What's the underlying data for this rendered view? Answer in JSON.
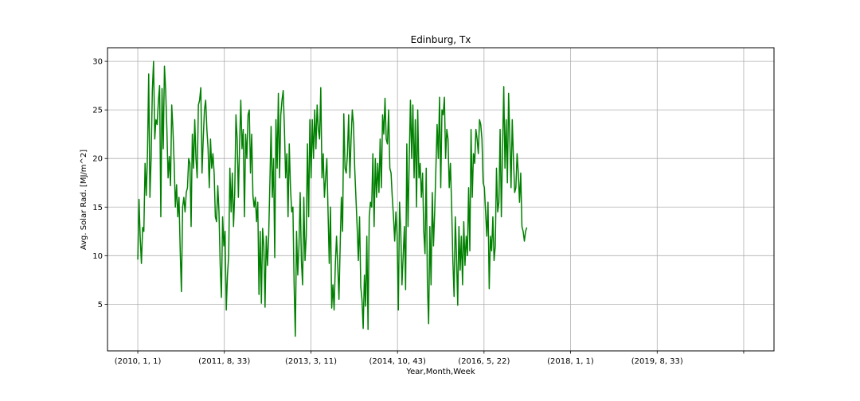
{
  "chart_data": {
    "type": "line",
    "title": "Edinburg, Tx",
    "xlabel": "Year,Month,Week",
    "ylabel": "Avg. Solar Rad. [MJ/m^2]",
    "grid": true,
    "line_color": "#008000",
    "ylim": [
      0.2,
      31.4
    ],
    "xlim": [
      -25,
      525
    ],
    "yticks": [
      5,
      10,
      15,
      20,
      25,
      30
    ],
    "xticks": [
      {
        "pos": 0,
        "label": "(2010, 1, 1)"
      },
      {
        "pos": 71.4,
        "label": "(2011, 8, 33)"
      },
      {
        "pos": 142.9,
        "label": "(2013, 3, 11)"
      },
      {
        "pos": 214.3,
        "label": "(2014, 10, 43)"
      },
      {
        "pos": 285.7,
        "label": "(2016, 5, 22)"
      },
      {
        "pos": 357.1,
        "label": "(2018, 1, 1)"
      },
      {
        "pos": 428.6,
        "label": "(2019, 8, 33)"
      },
      {
        "pos": 500,
        "label": ""
      }
    ],
    "series": [
      {
        "name": "Avg. Solar Rad.",
        "points": [
          [
            0,
            9.6
          ],
          [
            1,
            15.8
          ],
          [
            2,
            11.8
          ],
          [
            3,
            9.2
          ],
          [
            4,
            12.9
          ],
          [
            5,
            12.5
          ],
          [
            6,
            19.5
          ],
          [
            7,
            16.2
          ],
          [
            8,
            20.5
          ],
          [
            9,
            28.7
          ],
          [
            10,
            16.0
          ],
          [
            11,
            20.1
          ],
          [
            12,
            27.0
          ],
          [
            13,
            30.0
          ],
          [
            14,
            22.0
          ],
          [
            15,
            24.0
          ],
          [
            16,
            23.5
          ],
          [
            17,
            26.0
          ],
          [
            18,
            27.5
          ],
          [
            19,
            14.0
          ],
          [
            20,
            27.2
          ],
          [
            21,
            21.0
          ],
          [
            22,
            29.5
          ],
          [
            23,
            27.0
          ],
          [
            24,
            23.0
          ],
          [
            25,
            18.0
          ],
          [
            26,
            20.2
          ],
          [
            27,
            17.2
          ],
          [
            28,
            25.5
          ],
          [
            29,
            23.0
          ],
          [
            30,
            19.5
          ],
          [
            31,
            15.0
          ],
          [
            32,
            17.3
          ],
          [
            33,
            14.0
          ],
          [
            34,
            16.0
          ],
          [
            35,
            10.5
          ],
          [
            36,
            6.3
          ],
          [
            37,
            15.0
          ],
          [
            38,
            16.0
          ],
          [
            39,
            14.5
          ],
          [
            40,
            16.5
          ],
          [
            41,
            17.0
          ],
          [
            42,
            20.0
          ],
          [
            43,
            19.5
          ],
          [
            44,
            13.0
          ],
          [
            45,
            22.5
          ],
          [
            46,
            19.0
          ],
          [
            47,
            24.0
          ],
          [
            48,
            20.0
          ],
          [
            49,
            18.0
          ],
          [
            50,
            25.5
          ],
          [
            51,
            26.0
          ],
          [
            52,
            27.3
          ],
          [
            53,
            18.5
          ],
          [
            54,
            22.0
          ],
          [
            55,
            25.0
          ],
          [
            56,
            26.0
          ],
          [
            57,
            23.0
          ],
          [
            58,
            21.0
          ],
          [
            59,
            17.0
          ],
          [
            60,
            22.0
          ],
          [
            61,
            19.0
          ],
          [
            62,
            20.5
          ],
          [
            63,
            18.5
          ],
          [
            64,
            14.0
          ],
          [
            65,
            13.5
          ],
          [
            66,
            17.2
          ],
          [
            67,
            14.5
          ],
          [
            68,
            9.0
          ],
          [
            69,
            5.7
          ],
          [
            70,
            14.0
          ],
          [
            71,
            11.0
          ],
          [
            72,
            12.5
          ],
          [
            73,
            4.4
          ],
          [
            74,
            8.0
          ],
          [
            75,
            10.0
          ],
          [
            76,
            19.0
          ],
          [
            77,
            14.5
          ],
          [
            78,
            18.5
          ],
          [
            79,
            13.0
          ],
          [
            80,
            16.5
          ],
          [
            81,
            24.5
          ],
          [
            82,
            22.0
          ],
          [
            83,
            16.0
          ],
          [
            84,
            21.5
          ],
          [
            85,
            26.0
          ],
          [
            86,
            21.0
          ],
          [
            87,
            23.0
          ],
          [
            88,
            14.0
          ],
          [
            89,
            22.5
          ],
          [
            90,
            20.0
          ],
          [
            91,
            24.5
          ],
          [
            92,
            25.0
          ],
          [
            93,
            18.5
          ],
          [
            94,
            22.5
          ],
          [
            95,
            16.2
          ],
          [
            96,
            15.0
          ],
          [
            97,
            16.0
          ],
          [
            98,
            13.5
          ],
          [
            99,
            15.5
          ],
          [
            100,
            6.0
          ],
          [
            101,
            12.5
          ],
          [
            102,
            5.1
          ],
          [
            103,
            12.8
          ],
          [
            104,
            11.0
          ],
          [
            105,
            4.7
          ],
          [
            106,
            12.0
          ],
          [
            107,
            9.0
          ],
          [
            108,
            12.0
          ],
          [
            109,
            17.5
          ],
          [
            110,
            23.3
          ],
          [
            111,
            16.0
          ],
          [
            112,
            20.0
          ],
          [
            113,
            9.8
          ],
          [
            114,
            24.0
          ],
          [
            115,
            19.0
          ],
          [
            116,
            26.7
          ],
          [
            117,
            18.0
          ],
          [
            118,
            24.5
          ],
          [
            119,
            26.0
          ],
          [
            120,
            27.0
          ],
          [
            121,
            23.0
          ],
          [
            122,
            18.0
          ],
          [
            123,
            20.5
          ],
          [
            124,
            14.0
          ],
          [
            125,
            21.5
          ],
          [
            126,
            17.0
          ],
          [
            127,
            14.5
          ],
          [
            128,
            15.0
          ],
          [
            129,
            7.0
          ],
          [
            130,
            1.7
          ],
          [
            131,
            12.5
          ],
          [
            132,
            8.0
          ],
          [
            133,
            11.0
          ],
          [
            134,
            16.5
          ],
          [
            135,
            9.5
          ],
          [
            136,
            7.0
          ],
          [
            137,
            16.0
          ],
          [
            138,
            9.5
          ],
          [
            139,
            12.0
          ],
          [
            140,
            21.5
          ],
          [
            141,
            14.0
          ],
          [
            142,
            24.0
          ],
          [
            143,
            18.0
          ],
          [
            144,
            24.0
          ],
          [
            145,
            20.0
          ],
          [
            146,
            25.0
          ],
          [
            147,
            21.0
          ],
          [
            148,
            25.5
          ],
          [
            149,
            23.0
          ],
          [
            150,
            22.0
          ],
          [
            151,
            27.3
          ],
          [
            152,
            18.0
          ],
          [
            153,
            20.5
          ],
          [
            154,
            16.0
          ],
          [
            155,
            18.0
          ],
          [
            156,
            20.0
          ],
          [
            157,
            14.5
          ],
          [
            158,
            9.2
          ],
          [
            159,
            15.0
          ],
          [
            160,
            4.6
          ],
          [
            161,
            7.0
          ],
          [
            162,
            4.4
          ],
          [
            163,
            9.0
          ],
          [
            164,
            12.0
          ],
          [
            165,
            9.0
          ],
          [
            166,
            5.5
          ],
          [
            167,
            11.0
          ],
          [
            168,
            16.0
          ],
          [
            169,
            12.5
          ],
          [
            170,
            24.6
          ],
          [
            171,
            19.0
          ],
          [
            172,
            18.5
          ],
          [
            173,
            20.5
          ],
          [
            174,
            24.5
          ],
          [
            175,
            18.0
          ],
          [
            176,
            22.0
          ],
          [
            177,
            25.0
          ],
          [
            178,
            23.5
          ],
          [
            179,
            19.0
          ],
          [
            180,
            16.0
          ],
          [
            181,
            13.0
          ],
          [
            182,
            9.5
          ],
          [
            183,
            14.0
          ],
          [
            184,
            6.8
          ],
          [
            185,
            5.5
          ],
          [
            186,
            2.5
          ],
          [
            187,
            8.0
          ],
          [
            188,
            4.8
          ],
          [
            189,
            12.0
          ],
          [
            190,
            2.4
          ],
          [
            191,
            14.0
          ],
          [
            192,
            15.5
          ],
          [
            193,
            15.0
          ],
          [
            194,
            20.5
          ],
          [
            195,
            13.0
          ],
          [
            196,
            20.0
          ],
          [
            197,
            16.0
          ],
          [
            198,
            19.5
          ],
          [
            199,
            16.5
          ],
          [
            200,
            22.0
          ],
          [
            201,
            17.0
          ],
          [
            202,
            24.5
          ],
          [
            203,
            22.5
          ],
          [
            204,
            26.2
          ],
          [
            205,
            22.0
          ],
          [
            206,
            21.5
          ],
          [
            207,
            25.0
          ],
          [
            208,
            19.0
          ],
          [
            209,
            18.5
          ],
          [
            210,
            16.0
          ],
          [
            211,
            14.0
          ],
          [
            212,
            11.5
          ],
          [
            213,
            14.5
          ],
          [
            214,
            12.0
          ],
          [
            215,
            4.4
          ],
          [
            216,
            15.5
          ],
          [
            217,
            12.5
          ],
          [
            218,
            7.0
          ],
          [
            219,
            10.0
          ],
          [
            220,
            13.0
          ],
          [
            221,
            6.5
          ],
          [
            222,
            21.5
          ],
          [
            223,
            13.0
          ],
          [
            224,
            20.0
          ],
          [
            225,
            26.0
          ],
          [
            226,
            20.0
          ],
          [
            227,
            25.5
          ],
          [
            228,
            18.0
          ],
          [
            229,
            24.0
          ],
          [
            230,
            15.0
          ],
          [
            231,
            25.0
          ],
          [
            232,
            18.0
          ],
          [
            233,
            19.5
          ],
          [
            234,
            16.0
          ],
          [
            235,
            18.5
          ],
          [
            236,
            12.5
          ],
          [
            237,
            10.2
          ],
          [
            238,
            19.0
          ],
          [
            239,
            7.0
          ],
          [
            240,
            3.0
          ],
          [
            241,
            13.0
          ],
          [
            242,
            7.0
          ],
          [
            243,
            16.5
          ],
          [
            244,
            11.0
          ],
          [
            245,
            14.5
          ],
          [
            246,
            19.0
          ],
          [
            247,
            23.5
          ],
          [
            248,
            20.0
          ],
          [
            249,
            26.3
          ],
          [
            250,
            17.0
          ],
          [
            251,
            25.0
          ],
          [
            252,
            24.5
          ],
          [
            253,
            26.3
          ],
          [
            254,
            20.0
          ],
          [
            255,
            23.0
          ],
          [
            256,
            22.0
          ],
          [
            257,
            17.0
          ],
          [
            258,
            19.5
          ],
          [
            259,
            15.0
          ],
          [
            260,
            9.5
          ],
          [
            261,
            5.8
          ],
          [
            262,
            14.0
          ],
          [
            263,
            10.0
          ],
          [
            264,
            4.9
          ],
          [
            265,
            13.0
          ],
          [
            266,
            8.5
          ],
          [
            267,
            12.0
          ],
          [
            268,
            7.0
          ],
          [
            269,
            13.5
          ],
          [
            270,
            9.0
          ],
          [
            271,
            12.0
          ],
          [
            272,
            10.0
          ],
          [
            273,
            17.0
          ],
          [
            274,
            10.5
          ],
          [
            275,
            23.0
          ],
          [
            276,
            16.0
          ],
          [
            277,
            20.5
          ],
          [
            278,
            19.5
          ],
          [
            279,
            23.0
          ],
          [
            280,
            22.0
          ],
          [
            281,
            20.5
          ],
          [
            282,
            24.0
          ],
          [
            283,
            23.5
          ],
          [
            284,
            22.0
          ],
          [
            285,
            17.5
          ],
          [
            286,
            17.0
          ],
          [
            287,
            14.5
          ],
          [
            288,
            12.0
          ],
          [
            289,
            15.5
          ],
          [
            290,
            6.6
          ],
          [
            291,
            12.0
          ],
          [
            292,
            10.5
          ],
          [
            293,
            14.0
          ],
          [
            294,
            9.5
          ],
          [
            295,
            11.0
          ],
          [
            296,
            19.0
          ],
          [
            297,
            14.5
          ],
          [
            298,
            15.5
          ],
          [
            299,
            23.0
          ],
          [
            300,
            14.0
          ],
          [
            301,
            21.0
          ],
          [
            302,
            27.4
          ],
          [
            303,
            19.0
          ],
          [
            304,
            24.0
          ],
          [
            305,
            17.5
          ],
          [
            306,
            26.7
          ],
          [
            307,
            22.0
          ],
          [
            308,
            17.0
          ],
          [
            309,
            24.0
          ],
          [
            310,
            20.0
          ],
          [
            311,
            16.5
          ],
          [
            312,
            17.0
          ],
          [
            313,
            20.5
          ],
          [
            314,
            18.5
          ],
          [
            315,
            15.5
          ],
          [
            316,
            18.5
          ],
          [
            317,
            13.0
          ],
          [
            318,
            12.5
          ],
          [
            319,
            11.5
          ],
          [
            320,
            12.5
          ],
          [
            321,
            12.9
          ]
        ]
      }
    ]
  }
}
